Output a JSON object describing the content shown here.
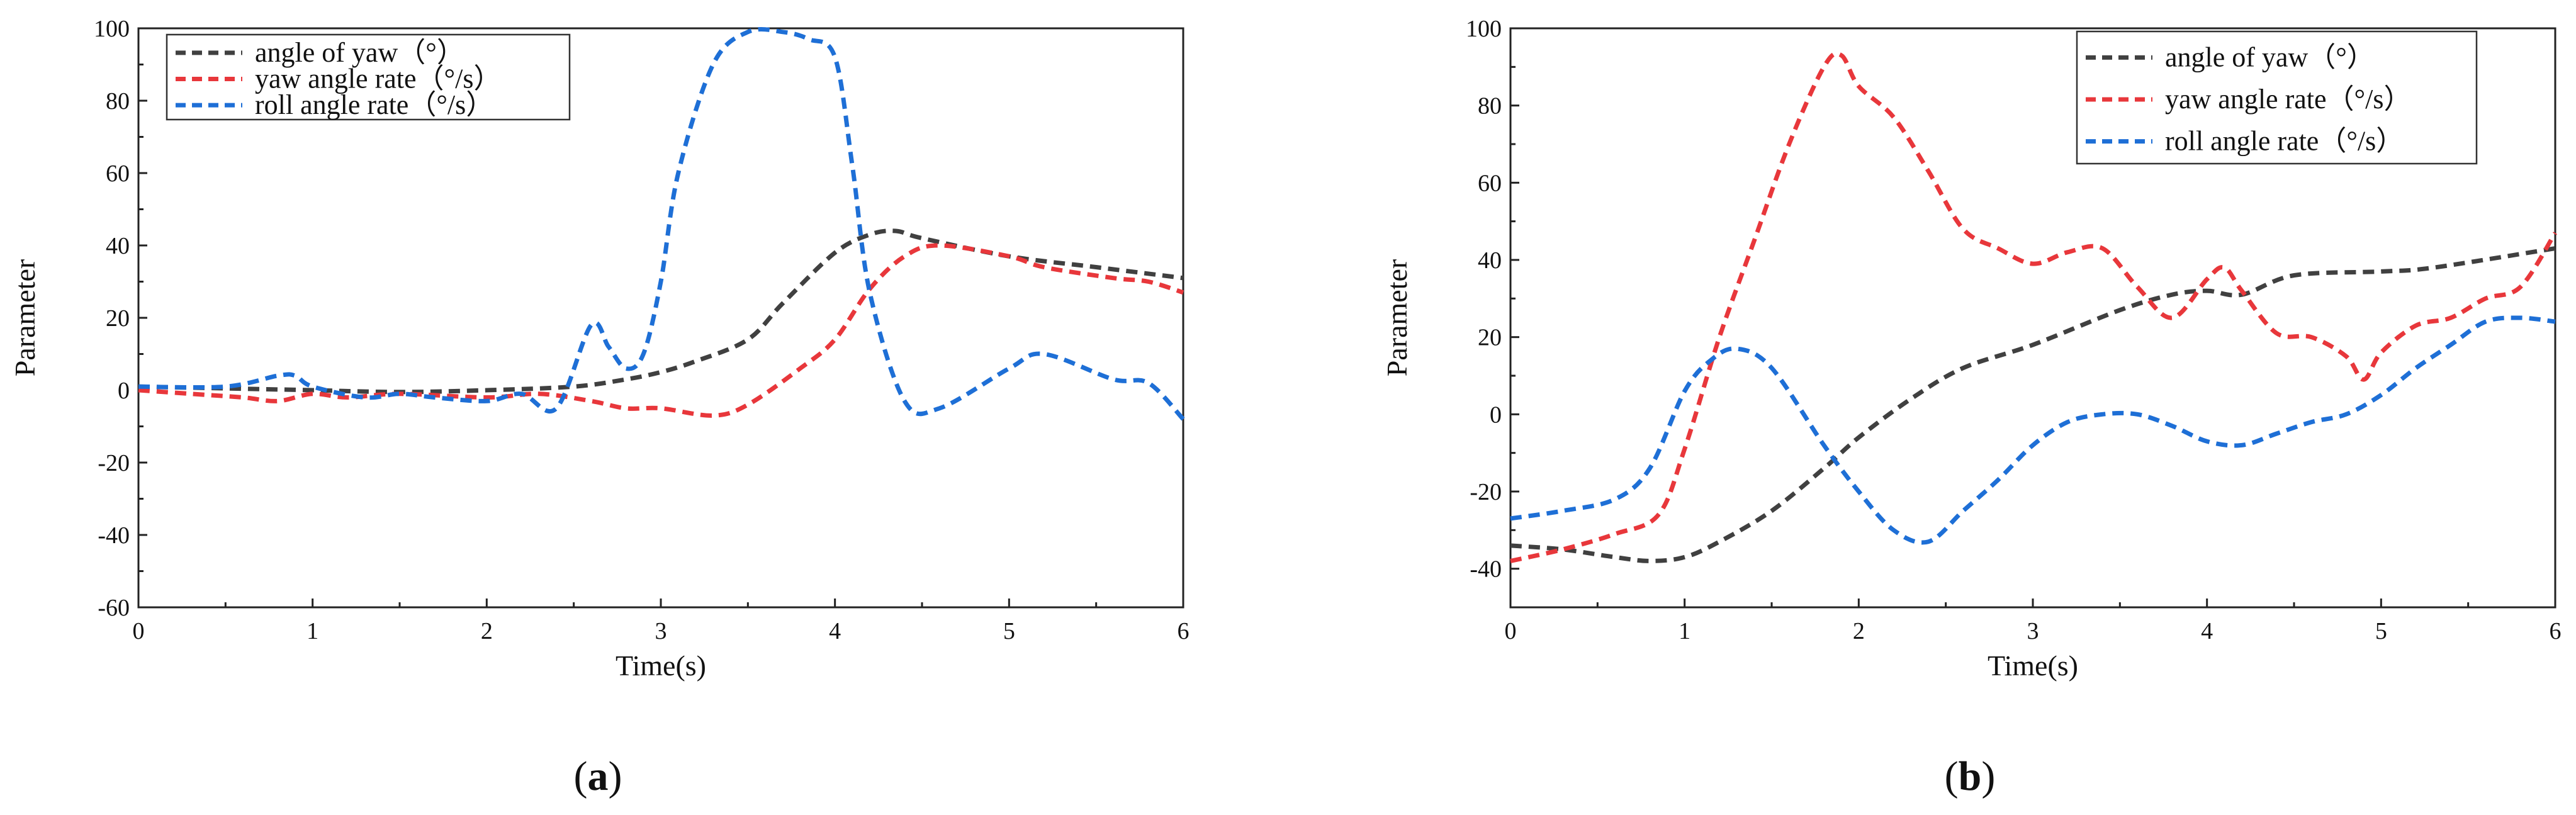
{
  "chart_data": [
    {
      "type": "line",
      "id": "a",
      "caption_letter": "a",
      "caption_open": "(",
      "caption_close": ")",
      "xlabel": "Time(s)",
      "ylabel": "Parameter",
      "xlim": [
        0,
        6
      ],
      "ylim": [
        -60,
        100
      ],
      "xticks": [
        0,
        1,
        2,
        3,
        4,
        5,
        6
      ],
      "yticks": [
        -60,
        -40,
        -20,
        0,
        20,
        40,
        60,
        80,
        100
      ],
      "legend_position": "top-left",
      "series": [
        {
          "name": "angle of yaw（°）",
          "color": "#404040",
          "x": [
            0,
            0.5,
            1,
            1.5,
            2,
            2.5,
            2.8,
            3.0,
            3.2,
            3.5,
            3.7,
            4.0,
            4.2,
            4.35,
            4.5,
            5.0,
            5.5,
            6.0
          ],
          "y": [
            1,
            0.5,
            0,
            -0.5,
            0,
            1,
            3,
            5,
            8,
            14,
            24,
            38,
            43,
            44,
            42,
            37,
            34,
            31
          ]
        },
        {
          "name": "yaw angle rate（°/s）",
          "color": "#e8373b",
          "x": [
            0,
            0.3,
            0.6,
            0.8,
            1.0,
            1.2,
            1.5,
            2.0,
            2.3,
            2.6,
            2.8,
            3.0,
            3.3,
            3.5,
            3.8,
            4.0,
            4.2,
            4.4,
            4.6,
            5.0,
            5.2,
            5.6,
            5.8,
            6.0
          ],
          "y": [
            0,
            -1,
            -2,
            -3,
            -1,
            -2,
            -1,
            -2,
            -1,
            -3,
            -5,
            -5,
            -7,
            -4,
            6,
            14,
            28,
            37,
            40,
            37,
            34,
            31,
            30,
            27
          ]
        },
        {
          "name": "roll angle rate（°/s）",
          "color": "#1e6fd6",
          "x": [
            0,
            0.5,
            0.8,
            0.9,
            1.0,
            1.3,
            1.5,
            1.7,
            2.0,
            2.2,
            2.4,
            2.6,
            2.7,
            2.8,
            2.9,
            3.0,
            3.1,
            3.3,
            3.5,
            3.7,
            3.85,
            4.0,
            4.1,
            4.2,
            4.4,
            4.6,
            5.0,
            5.2,
            5.6,
            5.8,
            6.0
          ],
          "y": [
            1,
            1,
            4,
            4,
            1,
            -2,
            -1,
            -2,
            -3,
            -1,
            -5,
            18,
            12,
            6,
            10,
            30,
            60,
            90,
            99,
            99,
            97,
            92,
            62,
            27,
            -3,
            -5,
            6,
            10,
            3,
            2,
            -8
          ]
        }
      ]
    },
    {
      "type": "line",
      "id": "b",
      "caption_letter": "b",
      "caption_open": "(",
      "caption_close": ")",
      "xlabel": "Time(s)",
      "ylabel": "Parameter",
      "xlim": [
        0,
        6
      ],
      "ylim": [
        -50,
        100
      ],
      "xticks": [
        0,
        1,
        2,
        3,
        4,
        5,
        6
      ],
      "yticks": [
        -40,
        -20,
        0,
        20,
        40,
        60,
        80,
        100
      ],
      "legend_position": "top-right",
      "series": [
        {
          "name": "angle of yaw（°）",
          "color": "#404040",
          "x": [
            0,
            0.3,
            0.6,
            0.8,
            1.0,
            1.2,
            1.5,
            1.8,
            2.0,
            2.3,
            2.6,
            3.0,
            3.5,
            3.8,
            4.0,
            4.2,
            4.5,
            5.0,
            5.3,
            6.0
          ],
          "y": [
            -34,
            -35,
            -37,
            -38,
            -37,
            -33,
            -25,
            -14,
            -6,
            4,
            12,
            18,
            27,
            31,
            32,
            31,
            36,
            37,
            38,
            43
          ]
        },
        {
          "name": "yaw angle rate（°/s）",
          "color": "#e8373b",
          "x": [
            0,
            0.3,
            0.6,
            0.85,
            1.0,
            1.2,
            1.4,
            1.6,
            1.8,
            1.9,
            2.0,
            2.2,
            2.4,
            2.6,
            2.8,
            3.0,
            3.2,
            3.4,
            3.6,
            3.8,
            4.0,
            4.1,
            4.2,
            4.4,
            4.6,
            4.8,
            4.9,
            5.0,
            5.2,
            5.4,
            5.6,
            5.8,
            6.0
          ],
          "y": [
            -38,
            -35,
            -31,
            -26,
            -9,
            20,
            45,
            70,
            90,
            93,
            85,
            77,
            63,
            48,
            43,
            39,
            42,
            43,
            33,
            25,
            35,
            38,
            32,
            21,
            20,
            15,
            9,
            16,
            23,
            25,
            30,
            33,
            47
          ]
        },
        {
          "name": "roll angle rate（°/s）",
          "color": "#1e6fd6",
          "x": [
            0,
            0.3,
            0.6,
            0.8,
            1.0,
            1.15,
            1.3,
            1.5,
            1.8,
            2.0,
            2.2,
            2.4,
            2.6,
            2.8,
            3.0,
            3.2,
            3.4,
            3.6,
            3.8,
            4.0,
            4.2,
            4.4,
            4.6,
            4.8,
            5.0,
            5.2,
            5.4,
            5.6,
            5.8,
            6.0
          ],
          "y": [
            -27,
            -25,
            -22,
            -14,
            6,
            14,
            17,
            12,
            -8,
            -20,
            -30,
            -33,
            -25,
            -17,
            -8,
            -2,
            0,
            0,
            -3,
            -7,
            -8,
            -5,
            -2,
            0,
            5,
            12,
            18,
            24,
            25,
            24
          ]
        }
      ]
    }
  ]
}
